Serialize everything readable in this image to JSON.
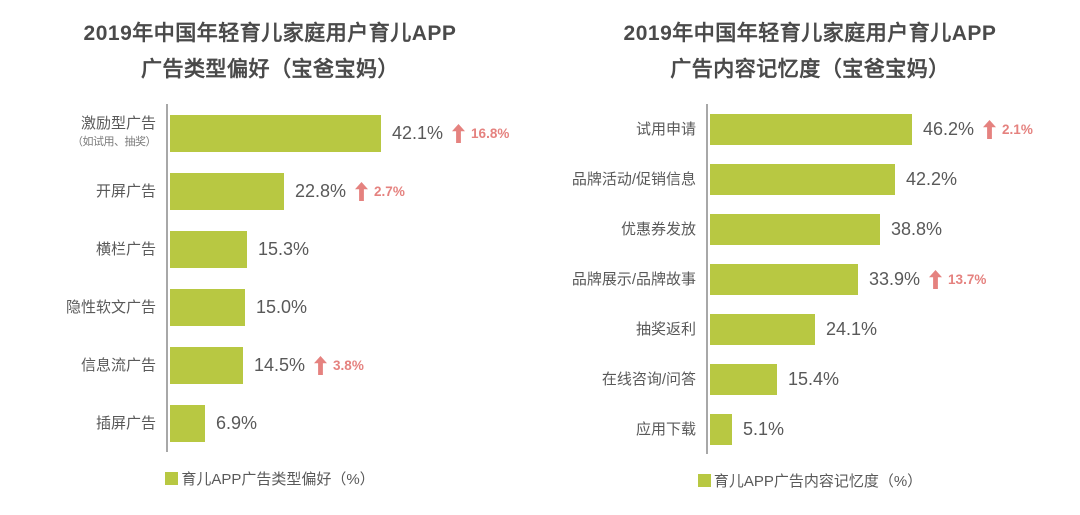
{
  "colors": {
    "bar_green": "#b8c842",
    "delta_pink": "#e5827f",
    "axis_gray": "#a8a8a8",
    "title_gray": "#4a4a4a",
    "text_gray": "#595959",
    "background": "#ffffff"
  },
  "chart_data": [
    {
      "type": "bar",
      "orientation": "horizontal",
      "title_line1": "2019年中国年轻育儿家庭用户育儿APP",
      "title_line2": "广告类型偏好（宝爸宝妈）",
      "title": "2019年中国年轻育儿家庭用户育儿APP广告类型偏好（宝爸宝妈）",
      "categories": [
        "激励型广告",
        "开屏广告",
        "横栏广告",
        "隐性软文广告",
        "信息流广告",
        "插屏广告"
      ],
      "category_notes": [
        "（如试用、抽奖）",
        null,
        null,
        null,
        null,
        null
      ],
      "values": [
        42.1,
        22.8,
        15.3,
        15.0,
        14.5,
        6.9
      ],
      "value_labels": [
        "42.1%",
        "22.8%",
        "15.3%",
        "15.0%",
        "14.5%",
        "6.9%"
      ],
      "deltas": [
        16.8,
        2.7,
        null,
        null,
        3.8,
        null
      ],
      "delta_labels": [
        "16.8%",
        "2.7%",
        null,
        null,
        "3.8%",
        null
      ],
      "delta_direction": "up",
      "xlim": [
        0,
        70
      ],
      "grid": false,
      "legend": "育儿APP广告类型偏好（%）",
      "legend_position": "bottom",
      "bar_color": "#b8c842"
    },
    {
      "type": "bar",
      "orientation": "horizontal",
      "title_line1": "2019年中国年轻育儿家庭用户育儿APP",
      "title_line2": "广告内容记忆度（宝爸宝妈）",
      "title": "2019年中国年轻育儿家庭用户育儿APP广告内容记忆度（宝爸宝妈）",
      "categories": [
        "试用申请",
        "品牌活动/促销信息",
        "优惠券发放",
        "品牌展示/品牌故事",
        "抽奖返利",
        "在线咨询/问答",
        "应用下载"
      ],
      "category_notes": [
        null,
        null,
        null,
        null,
        null,
        null,
        null
      ],
      "values": [
        46.2,
        42.2,
        38.8,
        33.9,
        24.1,
        15.4,
        5.1
      ],
      "value_labels": [
        "46.2%",
        "42.2%",
        "38.8%",
        "33.9%",
        "24.1%",
        "15.4%",
        "5.1%"
      ],
      "deltas": [
        2.1,
        null,
        null,
        13.7,
        null,
        null,
        null
      ],
      "delta_labels": [
        "2.1%",
        null,
        null,
        "13.7%",
        null,
        null,
        null
      ],
      "delta_direction": "up",
      "xlim": [
        0,
        80
      ],
      "grid": false,
      "legend": "育儿APP广告内容记忆度（%）",
      "legend_position": "bottom",
      "bar_color": "#b8c842"
    }
  ]
}
